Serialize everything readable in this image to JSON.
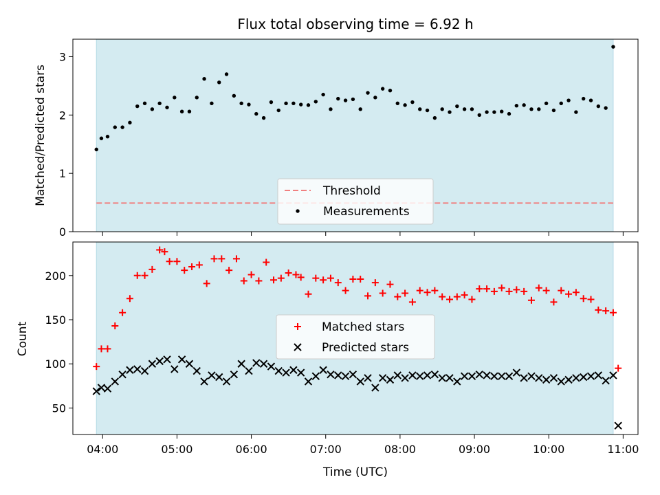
{
  "chart_data": [
    {
      "type": "scatter",
      "title": "Flux total observing time = 6.92 h",
      "ylabel": "Matched/Predicted stars",
      "ylim": [
        0,
        3.3
      ],
      "yticks": [
        0,
        1,
        2,
        3
      ],
      "shaded_band_x": [
        "03:55",
        "10:52"
      ],
      "shade_color": "#d4ebf1",
      "threshold": 0.49,
      "legend_position": "lower-center",
      "series": [
        {
          "name": "Threshold",
          "kind": "line",
          "color": "#f08080",
          "dash": true,
          "x": [
            "03:55",
            "10:52"
          ],
          "values": [
            0.49,
            0.49
          ]
        },
        {
          "name": "Measurements",
          "kind": "dots",
          "color": "#000000",
          "x": [
            "03:55",
            "03:59",
            "04:04",
            "04:10",
            "04:16",
            "04:22",
            "04:28",
            "04:34",
            "04:40",
            "04:46",
            "04:52",
            "04:58",
            "05:04",
            "05:10",
            "05:16",
            "05:22",
            "05:28",
            "05:34",
            "05:40",
            "05:46",
            "05:52",
            "05:58",
            "06:04",
            "06:10",
            "06:16",
            "06:22",
            "06:28",
            "06:34",
            "06:40",
            "06:46",
            "06:52",
            "06:58",
            "07:04",
            "07:10",
            "07:16",
            "07:22",
            "07:28",
            "07:34",
            "07:40",
            "07:46",
            "07:52",
            "07:58",
            "08:04",
            "08:10",
            "08:16",
            "08:22",
            "08:28",
            "08:34",
            "08:40",
            "08:46",
            "08:52",
            "08:58",
            "09:04",
            "09:10",
            "09:16",
            "09:22",
            "09:28",
            "09:34",
            "09:40",
            "09:46",
            "09:52",
            "09:58",
            "10:04",
            "10:10",
            "10:16",
            "10:22",
            "10:28",
            "10:34",
            "10:40",
            "10:46",
            "10:52"
          ],
          "values": [
            1.41,
            1.6,
            1.63,
            1.79,
            1.79,
            1.87,
            2.15,
            2.2,
            2.1,
            2.2,
            2.13,
            2.3,
            2.06,
            2.06,
            2.3,
            2.62,
            2.2,
            2.56,
            2.7,
            2.33,
            2.2,
            2.18,
            2.02,
            1.95,
            2.22,
            2.08,
            2.2,
            2.2,
            2.18,
            2.17,
            2.23,
            2.35,
            2.1,
            2.28,
            2.25,
            2.27,
            2.1,
            2.38,
            2.3,
            2.45,
            2.42,
            2.2,
            2.17,
            2.22,
            2.1,
            2.08,
            1.95,
            2.1,
            2.05,
            2.15,
            2.1,
            2.1,
            2.0,
            2.05,
            2.05,
            2.06,
            2.02,
            2.16,
            2.17,
            2.1,
            2.1,
            2.2,
            2.08,
            2.2,
            2.25,
            2.05,
            2.28,
            2.25,
            2.15,
            2.12,
            3.17
          ]
        }
      ]
    },
    {
      "type": "scatter",
      "xlabel": "Time (UTC)",
      "ylabel": "Count",
      "xlim": [
        "03:36",
        "11:12"
      ],
      "xticks": [
        "04:00",
        "05:00",
        "06:00",
        "07:00",
        "08:00",
        "09:00",
        "10:00",
        "11:00"
      ],
      "ylim": [
        20,
        238
      ],
      "yticks": [
        50,
        100,
        150,
        200
      ],
      "shaded_band_x": [
        "03:55",
        "10:52"
      ],
      "legend_position": "center",
      "series": [
        {
          "name": "Matched stars",
          "marker": "plus",
          "color": "#ff0000",
          "x": [
            "03:55",
            "03:59",
            "04:04",
            "04:10",
            "04:16",
            "04:22",
            "04:28",
            "04:34",
            "04:40",
            "04:46",
            "04:50",
            "04:54",
            "05:00",
            "05:06",
            "05:12",
            "05:18",
            "05:24",
            "05:30",
            "05:36",
            "05:42",
            "05:48",
            "05:54",
            "06:00",
            "06:06",
            "06:12",
            "06:18",
            "06:24",
            "06:30",
            "06:36",
            "06:40",
            "06:46",
            "06:52",
            "06:58",
            "07:04",
            "07:10",
            "07:16",
            "07:22",
            "07:28",
            "07:34",
            "07:40",
            "07:46",
            "07:52",
            "07:58",
            "08:04",
            "08:10",
            "08:16",
            "08:22",
            "08:28",
            "08:34",
            "08:40",
            "08:46",
            "08:52",
            "08:58",
            "09:04",
            "09:10",
            "09:16",
            "09:22",
            "09:28",
            "09:34",
            "09:40",
            "09:46",
            "09:52",
            "09:58",
            "10:04",
            "10:10",
            "10:16",
            "10:22",
            "10:28",
            "10:34",
            "10:40",
            "10:46",
            "10:52",
            "10:56"
          ],
          "values": [
            97,
            117,
            117,
            143,
            158,
            174,
            200,
            200,
            207,
            229,
            227,
            216,
            216,
            206,
            210,
            212,
            191,
            219,
            219,
            206,
            219,
            194,
            201,
            194,
            215,
            195,
            197,
            203,
            201,
            198,
            179,
            197,
            195,
            197,
            192,
            183,
            196,
            196,
            177,
            192,
            180,
            190,
            176,
            180,
            170,
            183,
            181,
            183,
            176,
            173,
            176,
            178,
            173,
            185,
            185,
            182,
            186,
            182,
            184,
            182,
            172,
            186,
            183,
            170,
            183,
            179,
            181,
            174,
            173,
            161,
            160,
            158,
            95
          ]
        }
      ]
    }
  ],
  "lower_series_2": {
    "name": "Predicted stars",
    "marker": "x",
    "color": "#000000",
    "x": [
      "03:55",
      "03:59",
      "04:04",
      "04:10",
      "04:16",
      "04:22",
      "04:28",
      "04:34",
      "04:40",
      "04:46",
      "04:52",
      "04:58",
      "05:04",
      "05:10",
      "05:16",
      "05:22",
      "05:28",
      "05:34",
      "05:40",
      "05:46",
      "05:52",
      "05:58",
      "06:04",
      "06:10",
      "06:16",
      "06:22",
      "06:28",
      "06:34",
      "06:40",
      "06:46",
      "06:52",
      "06:58",
      "07:04",
      "07:10",
      "07:16",
      "07:22",
      "07:28",
      "07:34",
      "07:40",
      "07:46",
      "07:52",
      "07:58",
      "08:04",
      "08:10",
      "08:16",
      "08:22",
      "08:28",
      "08:34",
      "08:40",
      "08:46",
      "08:52",
      "08:58",
      "09:04",
      "09:10",
      "09:16",
      "09:22",
      "09:28",
      "09:34",
      "09:40",
      "09:46",
      "09:52",
      "09:58",
      "10:04",
      "10:10",
      "10:16",
      "10:22",
      "10:28",
      "10:34",
      "10:40",
      "10:46",
      "10:52",
      "10:56"
    ],
    "values": [
      69,
      73,
      72,
      80,
      88,
      93,
      94,
      92,
      100,
      103,
      105,
      94,
      105,
      100,
      92,
      80,
      87,
      85,
      80,
      88,
      100,
      92,
      101,
      100,
      97,
      92,
      90,
      93,
      90,
      80,
      86,
      93,
      88,
      87,
      86,
      88,
      80,
      84,
      73,
      84,
      82,
      87,
      84,
      87,
      86,
      87,
      88,
      84,
      84,
      80,
      86,
      86,
      88,
      87,
      86,
      86,
      86,
      90,
      84,
      86,
      84,
      82,
      84,
      80,
      82,
      84,
      85,
      86,
      87,
      81,
      87,
      30
    ]
  }
}
